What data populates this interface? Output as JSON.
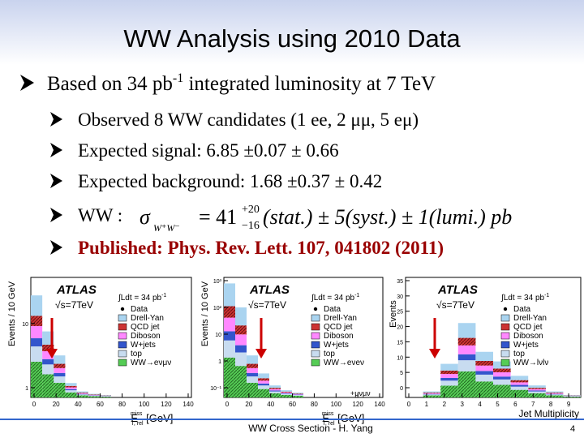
{
  "header": {
    "title": "WW Analysis using 2010 Data"
  },
  "bullet": {
    "parts": [
      "Based on 34 pb",
      "-1",
      " integrated luminosity at 7 TeV"
    ]
  },
  "sub_bullets": [
    "Observed 8 WW candidates (1 ee, 2 μμ, 5 eμ)",
    "Expected signal: 6.85 ±0.07 ± 0.66",
    "Expected background: 1.68 ±0.37 ± 0.42"
  ],
  "formula": {
    "lead": "WW :",
    "sigma": "σ",
    "sub": "W⁺W⁻",
    "value": "= 41",
    "up": "+20",
    "down": "−16",
    "rest": "(stat.) ± 5(syst.) ± 1(lumi.) pb"
  },
  "publication": "Published: Phys. Rev. Lett. 107, 041802 (2011)",
  "plots": [
    {
      "y_label": "Events / 10 GeV",
      "x_label": "E",
      "x_sup": "miss",
      "x_sub": "T, rel",
      "x_unit": " [GeV]",
      "experiment": "ATLAS",
      "energy": "√s=7TeV",
      "lumi": "∫Ldt = 34 pb",
      "lumi_sup": "-1",
      "legend": [
        {
          "label": "Data",
          "color": "#000000"
        },
        {
          "label": "Drell-Yan",
          "color": "#aad4f0"
        },
        {
          "label": "QCD jet",
          "color": "#cc3333"
        },
        {
          "label": "Diboson",
          "color": "#ff88ff"
        },
        {
          "label": "W+jets",
          "color": "#3355cc"
        },
        {
          "label": "top",
          "color": "#c8dcf0"
        },
        {
          "label": "WW→eνμν",
          "color": "#55cc55"
        }
      ],
      "x_ticks": [
        "0",
        "20",
        "40",
        "60",
        "80",
        "100",
        "120",
        "140"
      ],
      "y_ticks": [
        "1",
        "10"
      ]
    },
    {
      "y_label": "Events / 10 GeV",
      "x_label": "E",
      "x_sup": "miss",
      "x_sub": "T, rel",
      "x_unit": " [GeV]",
      "experiment": "ATLAS",
      "energy": "√s=7TeV",
      "lumi": "∫Ldt = 34 pb",
      "lumi_sup": "-1",
      "legend": [
        {
          "label": "Data",
          "color": "#000000"
        },
        {
          "label": "Drell-Yan",
          "color": "#aad4f0"
        },
        {
          "label": "QCD jet",
          "color": "#cc3333"
        },
        {
          "label": "Diboson",
          "color": "#ff88ff"
        },
        {
          "label": "W+jets",
          "color": "#3355cc"
        },
        {
          "label": "top",
          "color": "#c8dcf0"
        },
        {
          "label": "WW→eνeν",
          "color": "#55cc55"
        }
      ],
      "channel_extra": "+μνμν",
      "x_ticks": [
        "0",
        "20",
        "40",
        "60",
        "80",
        "100",
        "120",
        "140"
      ],
      "y_ticks": [
        "10⁻¹",
        "1",
        "10",
        "10²",
        "10³"
      ]
    },
    {
      "y_label": "Events",
      "x_label": "Jet Multiplicity",
      "experiment": "ATLAS",
      "energy": "√s=7TeV",
      "lumi": "∫Ldt = 34 pb",
      "lumi_sup": "-1",
      "legend": [
        {
          "label": "Data",
          "color": "#000000"
        },
        {
          "label": "Drell-Yan",
          "color": "#aad4f0"
        },
        {
          "label": "QCD jet",
          "color": "#cc3333"
        },
        {
          "label": "Diboson",
          "color": "#ff88ff"
        },
        {
          "label": "W+jets",
          "color": "#3355cc"
        },
        {
          "label": "top",
          "color": "#c8dcf0"
        },
        {
          "label": "WW→lνlν",
          "color": "#55cc55"
        }
      ],
      "x_ticks": [
        "0",
        "1",
        "2",
        "3",
        "4",
        "5",
        "6",
        "7",
        "8",
        "9"
      ],
      "y_ticks": [
        "0",
        "5",
        "10",
        "15",
        "20",
        "25",
        "30",
        "35"
      ]
    }
  ],
  "footer": {
    "text": "WW Cross Section - H. Yang",
    "page": "4"
  }
}
